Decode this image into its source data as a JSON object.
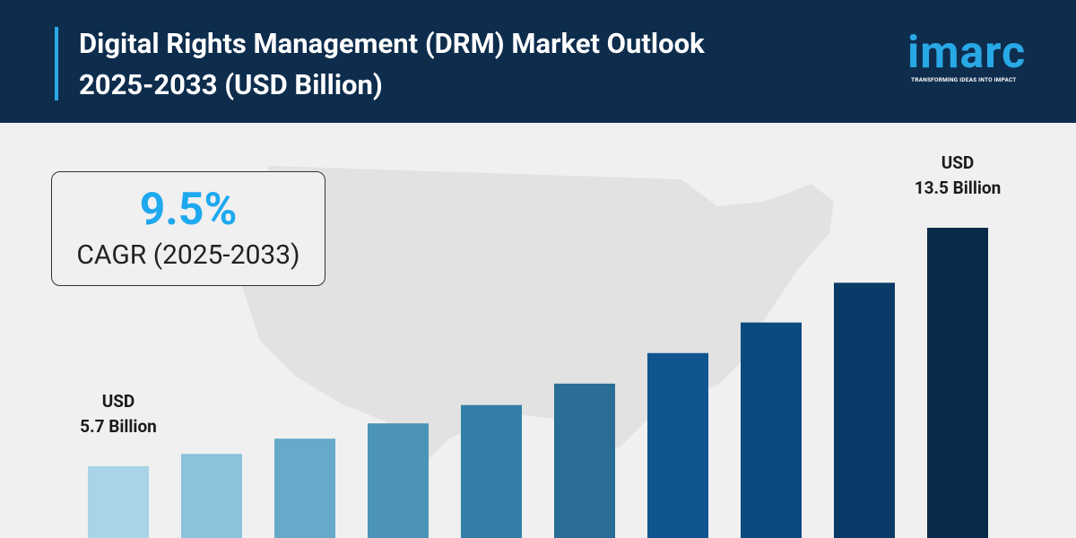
{
  "chart_data": {
    "type": "bar",
    "title": "Digital Rights Management (DRM) Market Outlook 2025-2033 (USD Billion)",
    "logo": "imarc",
    "tagline": "TRANSFORMING IDEAS INTO IMPACT",
    "cagr_value": "9.5%",
    "cagr_label": "CAGR (2025-2033)",
    "categories": [
      null,
      null,
      null,
      null,
      null,
      null,
      null,
      null,
      null,
      null
    ],
    "values": [
      5.7,
      6.1,
      6.6,
      7.1,
      7.7,
      8.4,
      9.4,
      10.4,
      11.7,
      13.5
    ],
    "value_labels": [
      "USD\n5.7 Billion",
      null,
      null,
      null,
      null,
      null,
      null,
      null,
      null,
      "USD\n13.5 Billion"
    ],
    "colors": [
      "#a9d3e6",
      "#8cc2da",
      "#67a9c9",
      "#4b94b8",
      "#337fa8",
      "#2a6d96",
      "#0f5690",
      "#0b4a80",
      "#0a3b68",
      "#0a2a4b"
    ],
    "ylim": [
      3.35,
      13.5
    ]
  }
}
